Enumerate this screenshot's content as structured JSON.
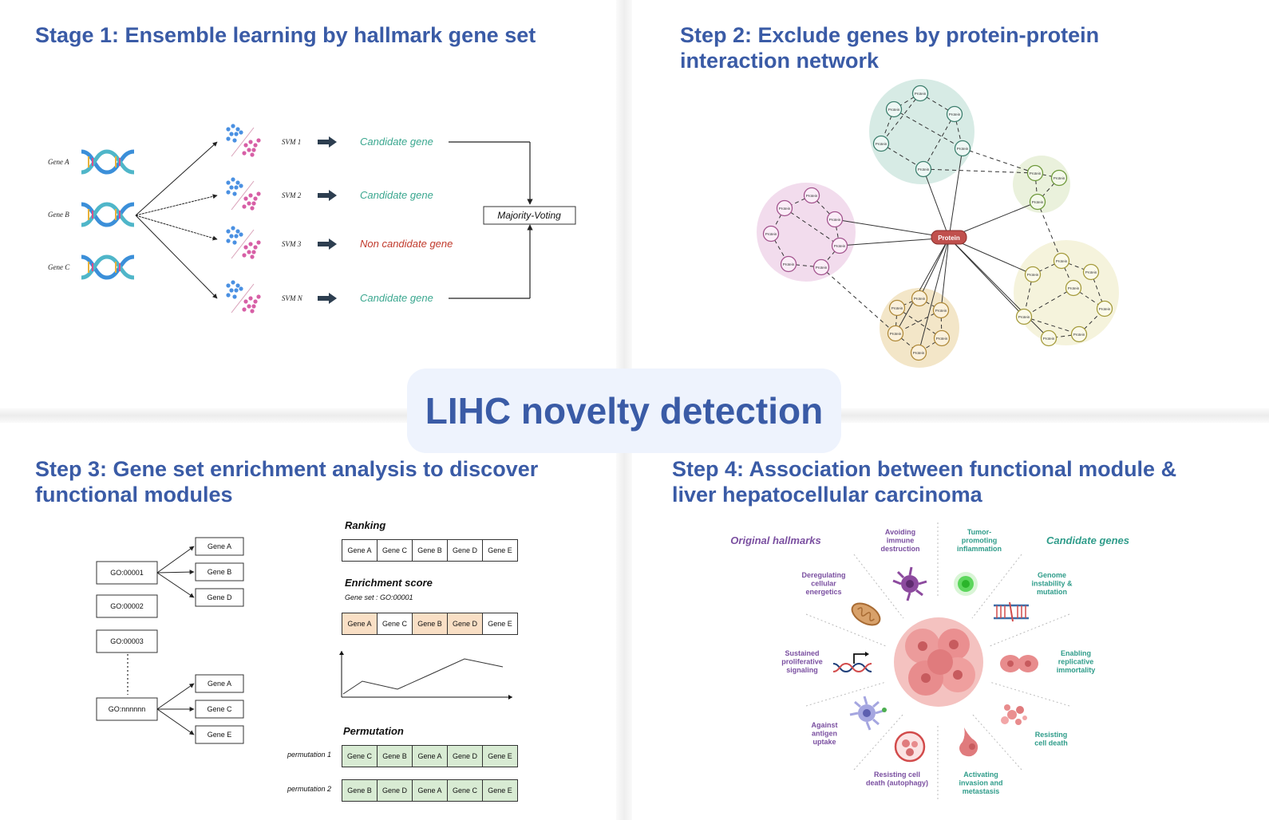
{
  "center_title": "LIHC novelty detection",
  "stage1": {
    "title": "Stage 1: Ensemble learning by hallmark gene set",
    "genes": [
      "Gene A",
      "Gene B",
      "Gene C"
    ],
    "svms": [
      {
        "label": "SVM 1",
        "result": "Candidate gene",
        "status": "candidate"
      },
      {
        "label": "SVM 2",
        "result": "Candidate gene",
        "status": "candidate"
      },
      {
        "label": "SVM 3",
        "result": "Non candidate gene",
        "status": "non-candidate"
      },
      {
        "label": "SVM N",
        "result": "Candidate gene",
        "status": "candidate"
      }
    ],
    "voting": "Majority-Voting",
    "colors": {
      "candidate": "#3aa78f",
      "non_candidate": "#c0392b",
      "dots_blue": "#4a90e2",
      "dots_pink": "#d75fa6"
    }
  },
  "step2": {
    "title_line1": "Step 2: Exclude genes by protein-protein",
    "title_line2": "interaction network",
    "hub_label": "Protein",
    "node_label": "Protein",
    "colors": {
      "hub": "#c0504d",
      "teal": "#d7ebe5",
      "pink": "#f2dced",
      "green": "#eaf1dc",
      "yellow": "#f5f3dc",
      "orange": "#f3e6c8"
    }
  },
  "step3": {
    "title_line1": "Step 3: Gene set enrichment analysis to discover",
    "title_line2": "functional modules",
    "go_terms": [
      "GO:00001",
      "GO:00002",
      "GO:00003",
      "GO:nnnnnn"
    ],
    "go1_genes": [
      "Gene A",
      "Gene B",
      "Gene D"
    ],
    "gon_genes": [
      "Gene A",
      "Gene C",
      "Gene E"
    ],
    "ranking_label": "Ranking",
    "ranking": [
      "Gene A",
      "Gene C",
      "Gene B",
      "Gene D",
      "Gene E"
    ],
    "enrichment_label": "Enrichment score",
    "gene_set_label": "Gene set : GO:00001",
    "enrichment_genes": [
      "Gene A",
      "Gene C",
      "Gene B",
      "Gene D",
      "Gene E"
    ],
    "permutation_label": "Permutation",
    "permutation1_label": "permutation 1",
    "permutation1": [
      "Gene C",
      "Gene B",
      "Gene A",
      "Gene D",
      "Gene E"
    ],
    "permutation2_label": "permutation 2",
    "permutation2": [
      "Gene B",
      "Gene D",
      "Gene A",
      "Gene C",
      "Gene E"
    ],
    "colors": {
      "highlight": "#f9dfc5",
      "permutation": "#d8ebd3"
    }
  },
  "step4": {
    "title_line1": "Step 4: Association between functional module &",
    "title_line2": "liver hepatocellular carcinoma",
    "original_label": "Original hallmarks",
    "candidate_label": "Candidate genes",
    "hallmarks_left": {
      "avoiding": [
        "Avoiding",
        "immune",
        "destruction"
      ],
      "deregulating": [
        "Deregulating",
        "cellular",
        "energetics"
      ],
      "sustained": [
        "Sustained",
        "proliferative",
        "signaling"
      ],
      "against": [
        "Against",
        "antigen",
        "uptake"
      ],
      "resisting_autophagy": [
        "Resisting cell",
        "death (autophagy)"
      ]
    },
    "hallmarks_right": {
      "tumor": [
        "Tumor-",
        "promoting",
        "inflammation"
      ],
      "genome": [
        "Genome",
        "instability &",
        "mutation"
      ],
      "enabling": [
        "Enabling",
        "replicative",
        "immortality"
      ],
      "resisting": [
        "Resisting",
        "cell death"
      ],
      "activating": [
        "Activating",
        "invasion and",
        "metastasis"
      ]
    },
    "colors": {
      "original": "#7a4fa0",
      "candidate": "#2f9c8a"
    }
  }
}
